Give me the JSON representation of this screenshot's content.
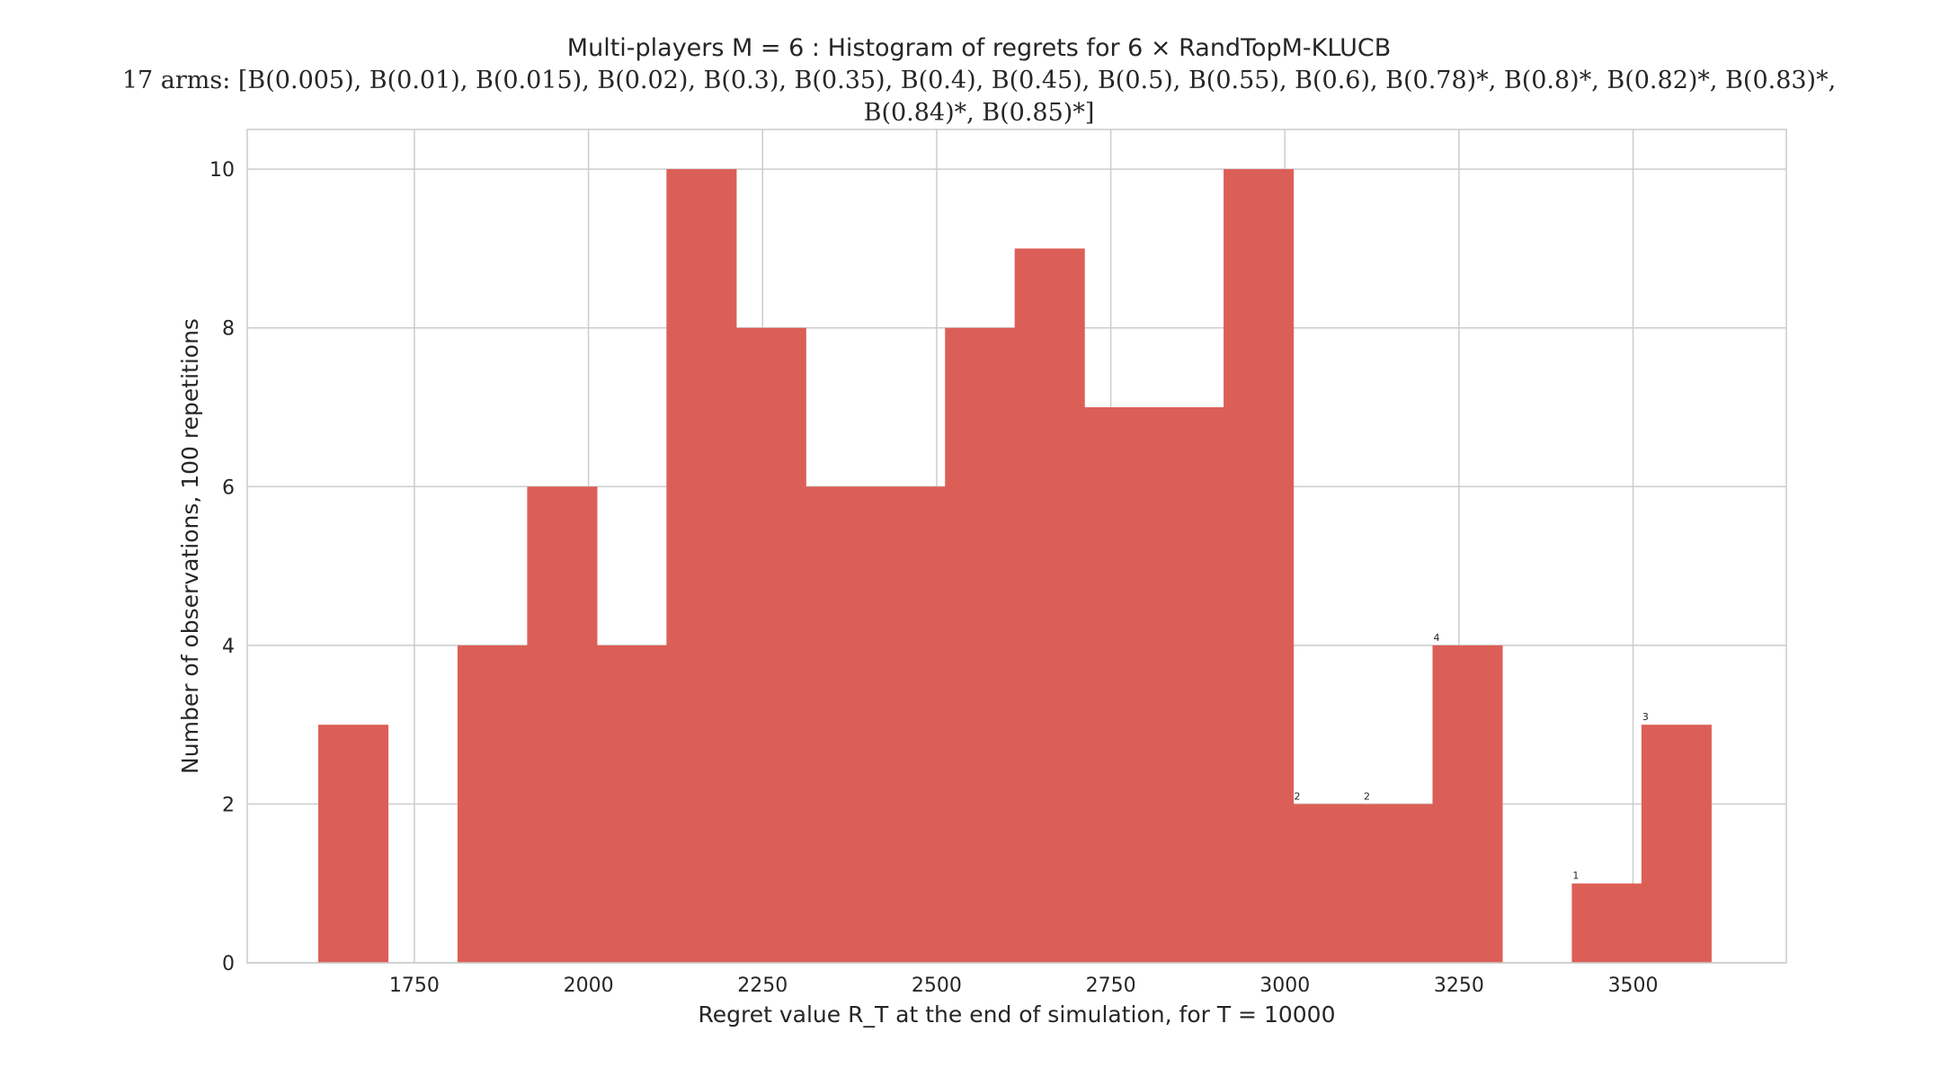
{
  "chart_data": {
    "type": "bar",
    "title": "Multi-players M = 6 : Histogram of regrets for 6 × RandTopM-KLUCB",
    "subtitle": "17 arms: [B(0.005), B(0.01), B(0.015), B(0.02), B(0.3), B(0.35), B(0.4), B(0.45), B(0.5), B(0.55), B(0.6), B(0.78)*, B(0.8)*, B(0.82)*, B(0.83)*,",
    "subtitle_line2": "B(0.84)*, B(0.85)*]",
    "xlabel": "Regret value R_T at the end of simulation, for T = 10000",
    "ylabel": "Number of observations, 100 repetitions",
    "xlim": [
      1510,
      3720
    ],
    "ylim": [
      0,
      10.5
    ],
    "xticks": [
      1750,
      2000,
      2250,
      2500,
      2750,
      3000,
      3250,
      3500
    ],
    "yticks": [
      0,
      2,
      4,
      6,
      8,
      10
    ],
    "bin_edges": [
      1612,
      1712,
      1812,
      1912,
      2012,
      2112,
      2212,
      2312,
      2412,
      2512,
      2612,
      2712,
      2812,
      2912,
      3012,
      3112,
      3212,
      3312,
      3412,
      3512,
      3612
    ],
    "values": [
      3,
      0,
      4,
      6,
      4,
      10,
      8,
      6,
      6,
      8,
      9,
      7,
      7,
      10,
      2,
      2,
      4,
      0,
      1,
      3
    ],
    "bar_labels": [
      "",
      "",
      "",
      "",
      "",
      "",
      "",
      "",
      "",
      "",
      "",
      "",
      "",
      "",
      "2",
      "2",
      "4",
      "",
      "1",
      "3"
    ],
    "color": "#dc5f57",
    "grid": true
  }
}
